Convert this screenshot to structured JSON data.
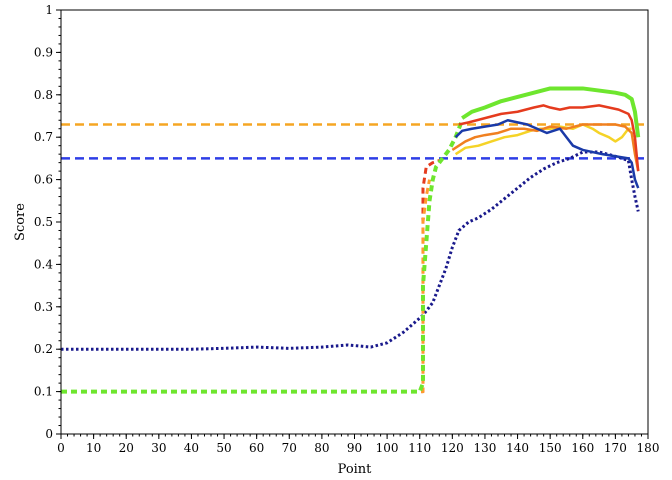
{
  "chart_data": {
    "type": "line",
    "title": "",
    "xlabel": "Point",
    "ylabel": "Score",
    "xlim": [
      0,
      180
    ],
    "ylim": [
      0,
      1
    ],
    "xticks": [
      0,
      10,
      20,
      30,
      40,
      50,
      60,
      70,
      80,
      90,
      100,
      110,
      120,
      130,
      140,
      150,
      160,
      170,
      180
    ],
    "yticks": [
      0,
      0.1,
      0.2,
      0.3,
      0.4,
      0.5,
      0.6,
      0.7,
      0.8,
      0.9,
      1
    ],
    "ytick_labels": [
      "0",
      "0.1",
      "0.2",
      "0.3",
      "0.4",
      "0.5",
      "0.6",
      "0.7",
      "0.8",
      "0.9",
      "1"
    ],
    "grid": false,
    "hlines": [
      {
        "y": 0.73,
        "color": "#f5a623",
        "style": "dashed"
      },
      {
        "y": 0.65,
        "color": "#2e3ee6",
        "style": "dashed"
      }
    ],
    "series": [
      {
        "color": "#1a1a8c",
        "style": "dotted",
        "width": 3,
        "points": [
          [
            0,
            0.2
          ],
          [
            20,
            0.2
          ],
          [
            40,
            0.2
          ],
          [
            50,
            0.202
          ],
          [
            60,
            0.205
          ],
          [
            70,
            0.202
          ],
          [
            80,
            0.205
          ],
          [
            88,
            0.21
          ],
          [
            95,
            0.205
          ],
          [
            100,
            0.215
          ],
          [
            105,
            0.24
          ],
          [
            108,
            0.26
          ],
          [
            111,
            0.28
          ],
          [
            114,
            0.31
          ],
          [
            116,
            0.35
          ],
          [
            118,
            0.39
          ],
          [
            120,
            0.44
          ],
          [
            122,
            0.48
          ],
          [
            125,
            0.5
          ],
          [
            128,
            0.51
          ],
          [
            132,
            0.53
          ],
          [
            136,
            0.555
          ],
          [
            140,
            0.58
          ],
          [
            144,
            0.605
          ],
          [
            148,
            0.625
          ],
          [
            152,
            0.64
          ],
          [
            156,
            0.65
          ],
          [
            160,
            0.665
          ],
          [
            165,
            0.665
          ],
          [
            170,
            0.655
          ],
          [
            174,
            0.645
          ],
          [
            175,
            0.6
          ],
          [
            176,
            0.56
          ],
          [
            177,
            0.525
          ]
        ]
      },
      {
        "color": "#e53b1e",
        "style": "dashed",
        "width": 3,
        "points": [
          [
            0,
            0.1
          ],
          [
            111,
            0.1
          ],
          [
            111,
            0.58
          ],
          [
            112,
            0.63
          ],
          [
            113,
            0.635
          ],
          [
            114,
            0.64
          ],
          [
            116,
            0.645
          ]
        ]
      },
      {
        "color": "#ff9b2e",
        "style": "dashed",
        "width": 3,
        "points": [
          [
            0,
            0.1
          ],
          [
            111,
            0.1
          ],
          [
            111,
            0.5
          ],
          [
            112,
            0.56
          ],
          [
            113,
            0.6
          ]
        ]
      },
      {
        "color": "#6ee62e",
        "style": "dashed",
        "width": 4,
        "points": [
          [
            0,
            0.1
          ],
          [
            110,
            0.1
          ],
          [
            111,
            0.12
          ],
          [
            111,
            0.35
          ],
          [
            112,
            0.45
          ],
          [
            113,
            0.55
          ],
          [
            114,
            0.6
          ],
          [
            115,
            0.63
          ],
          [
            117,
            0.65
          ],
          [
            119,
            0.67
          ],
          [
            121,
            0.7
          ],
          [
            122,
            0.72
          ],
          [
            123,
            0.74
          ]
        ]
      },
      {
        "color": "#f5d327",
        "style": "solid",
        "width": 2.5,
        "points": [
          [
            121,
            0.66
          ],
          [
            124,
            0.675
          ],
          [
            128,
            0.68
          ],
          [
            132,
            0.69
          ],
          [
            136,
            0.7
          ],
          [
            140,
            0.705
          ],
          [
            144,
            0.715
          ],
          [
            147,
            0.72
          ],
          [
            150,
            0.72
          ],
          [
            153,
            0.725
          ],
          [
            157,
            0.72
          ],
          [
            160,
            0.73
          ],
          [
            163,
            0.72
          ],
          [
            165,
            0.71
          ],
          [
            168,
            0.7
          ],
          [
            170,
            0.69
          ],
          [
            172,
            0.7
          ],
          [
            173,
            0.71
          ],
          [
            174,
            0.72
          ],
          [
            175,
            0.72
          ]
        ]
      },
      {
        "color": "#f08020",
        "style": "solid",
        "width": 2.5,
        "points": [
          [
            120,
            0.67
          ],
          [
            124,
            0.69
          ],
          [
            127,
            0.7
          ],
          [
            130,
            0.705
          ],
          [
            134,
            0.71
          ],
          [
            138,
            0.72
          ],
          [
            142,
            0.72
          ],
          [
            146,
            0.715
          ],
          [
            150,
            0.725
          ],
          [
            155,
            0.72
          ],
          [
            160,
            0.73
          ],
          [
            165,
            0.73
          ],
          [
            170,
            0.73
          ],
          [
            173,
            0.725
          ],
          [
            175,
            0.71
          ],
          [
            176,
            0.66
          ],
          [
            177,
            0.62
          ]
        ]
      },
      {
        "color": "#1a3aa8",
        "style": "solid",
        "width": 2.5,
        "points": [
          [
            121,
            0.7
          ],
          [
            123,
            0.715
          ],
          [
            126,
            0.72
          ],
          [
            130,
            0.725
          ],
          [
            134,
            0.73
          ],
          [
            137,
            0.74
          ],
          [
            140,
            0.735
          ],
          [
            143,
            0.73
          ],
          [
            146,
            0.72
          ],
          [
            149,
            0.71
          ],
          [
            151,
            0.715
          ],
          [
            153,
            0.72
          ],
          [
            155,
            0.7
          ],
          [
            157,
            0.68
          ],
          [
            160,
            0.67
          ],
          [
            163,
            0.665
          ],
          [
            166,
            0.66
          ],
          [
            170,
            0.655
          ],
          [
            174,
            0.65
          ],
          [
            175,
            0.64
          ],
          [
            176,
            0.6
          ],
          [
            177,
            0.58
          ]
        ]
      },
      {
        "color": "#e53b1e",
        "style": "solid",
        "width": 2.5,
        "points": [
          [
            122,
            0.73
          ],
          [
            125,
            0.735
          ],
          [
            130,
            0.745
          ],
          [
            135,
            0.755
          ],
          [
            140,
            0.76
          ],
          [
            145,
            0.77
          ],
          [
            148,
            0.775
          ],
          [
            150,
            0.77
          ],
          [
            153,
            0.765
          ],
          [
            156,
            0.77
          ],
          [
            160,
            0.77
          ],
          [
            165,
            0.775
          ],
          [
            168,
            0.77
          ],
          [
            171,
            0.765
          ],
          [
            174,
            0.755
          ],
          [
            175,
            0.74
          ],
          [
            176,
            0.7
          ],
          [
            177,
            0.62
          ]
        ]
      },
      {
        "color": "#6ee62e",
        "style": "solid",
        "width": 4,
        "points": [
          [
            123,
            0.745
          ],
          [
            126,
            0.76
          ],
          [
            130,
            0.77
          ],
          [
            135,
            0.785
          ],
          [
            140,
            0.795
          ],
          [
            145,
            0.805
          ],
          [
            150,
            0.815
          ],
          [
            155,
            0.815
          ],
          [
            160,
            0.815
          ],
          [
            165,
            0.81
          ],
          [
            170,
            0.805
          ],
          [
            173,
            0.8
          ],
          [
            175,
            0.79
          ],
          [
            176,
            0.76
          ],
          [
            177,
            0.7
          ]
        ]
      }
    ]
  }
}
